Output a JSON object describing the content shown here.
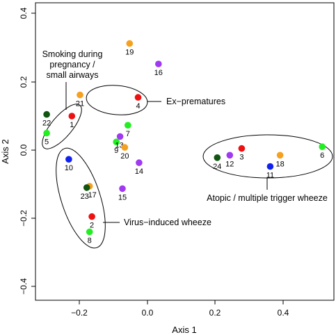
{
  "chart_data": {
    "type": "scatter",
    "xlabel": "Axis 1",
    "ylabel": "Axis 2",
    "xlim": [
      -0.33,
      0.55
    ],
    "ylim": [
      -0.45,
      0.42
    ],
    "x_ticks": [
      -0.2,
      0.0,
      0.2,
      0.4
    ],
    "x_tick_labels": [
      "−0.2",
      "0.0",
      "0.2",
      "0.4"
    ],
    "y_ticks": [
      -0.4,
      -0.2,
      0.0,
      0.2,
      0.4
    ],
    "y_tick_labels": [
      "−0.4",
      "−0.2",
      "0.0",
      "0.2",
      "0.4"
    ],
    "colors": {
      "red": "#ee1111",
      "orange": "#f5a020",
      "purple": "#a03af0",
      "green": "#22ee22",
      "darkgreen": "#115511",
      "blue": "#1122ee"
    },
    "points": [
      {
        "label": "1",
        "x": -0.222,
        "y": 0.1,
        "color": "red"
      },
      {
        "label": "2",
        "x": -0.163,
        "y": -0.195,
        "color": "red"
      },
      {
        "label": "3",
        "x": 0.278,
        "y": 0.005,
        "color": "red"
      },
      {
        "label": "4",
        "x": -0.027,
        "y": 0.155,
        "color": "red"
      },
      {
        "label": "5",
        "x": -0.296,
        "y": 0.05,
        "color": "green"
      },
      {
        "label": "6",
        "x": 0.515,
        "y": 0.01,
        "color": "green"
      },
      {
        "label": "7",
        "x": -0.057,
        "y": 0.073,
        "color": "green"
      },
      {
        "label": "8",
        "x": -0.17,
        "y": -0.24,
        "color": "green"
      },
      {
        "label": "9",
        "x": -0.091,
        "y": 0.024,
        "color": "green"
      },
      {
        "label": "10",
        "x": -0.231,
        "y": -0.027,
        "color": "blue"
      },
      {
        "label": "11",
        "x": 0.362,
        "y": -0.048,
        "color": "blue"
      },
      {
        "label": "12",
        "x": 0.243,
        "y": -0.015,
        "color": "purple"
      },
      {
        "label": "13",
        "x": -0.08,
        "y": 0.04,
        "color": "purple"
      },
      {
        "label": "14",
        "x": -0.024,
        "y": -0.037,
        "color": "purple"
      },
      {
        "label": "15",
        "x": -0.073,
        "y": -0.113,
        "color": "purple"
      },
      {
        "label": "16",
        "x": 0.033,
        "y": 0.253,
        "color": "purple"
      },
      {
        "label": "17",
        "x": -0.17,
        "y": -0.106,
        "color": "orange"
      },
      {
        "label": "18",
        "x": 0.391,
        "y": -0.015,
        "color": "orange"
      },
      {
        "label": "19",
        "x": -0.052,
        "y": 0.313,
        "color": "orange"
      },
      {
        "label": "20",
        "x": -0.066,
        "y": 0.008,
        "color": "orange"
      },
      {
        "label": "21",
        "x": -0.198,
        "y": 0.162,
        "color": "orange"
      },
      {
        "label": "22",
        "x": -0.296,
        "y": 0.105,
        "color": "darkgreen"
      },
      {
        "label": "23",
        "x": -0.178,
        "y": -0.11,
        "color": "darkgreen"
      },
      {
        "label": "24",
        "x": 0.206,
        "y": -0.022,
        "color": "darkgreen"
      }
    ],
    "annotations": [
      "Smoking during",
      "pregnancy /",
      "small airways",
      "Ex−prematures",
      "Virus−induced wheeze",
      "Atopic / multiple trigger wheeze"
    ]
  }
}
